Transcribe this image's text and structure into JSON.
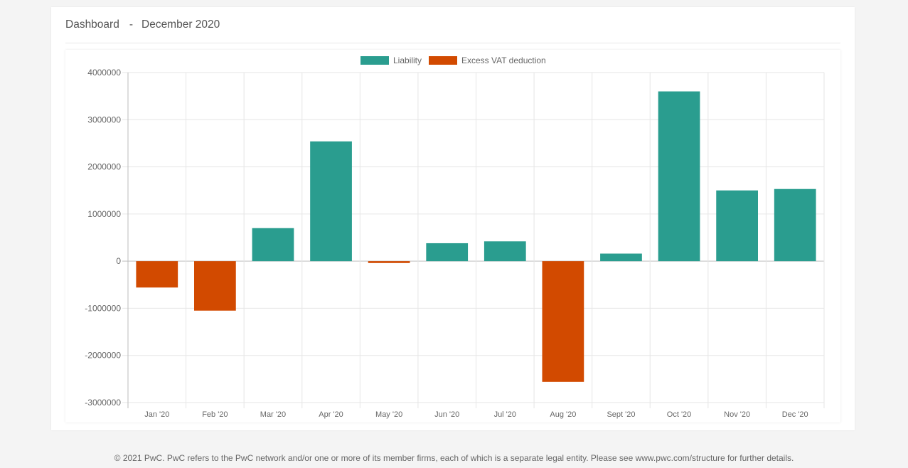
{
  "header": {
    "title": "Dashboard",
    "separator": "-",
    "period": "December 2020"
  },
  "footer": {
    "text": "© 2021 PwC. PwC refers to the PwC network and/or one or more of its member firms, each of which is a separate legal entity. Please see www.pwc.com/structure for further details."
  },
  "colors": {
    "liability": "#2a9d8f",
    "excess": "#d24a00",
    "grid": "#e6e6e6",
    "axis": "#bdbdbd",
    "tick_text": "#666666"
  },
  "chart_data": {
    "type": "bar",
    "title": "",
    "xlabel": "",
    "ylabel": "",
    "categories": [
      "Jan '20",
      "Feb '20",
      "Mar '20",
      "Apr '20",
      "May '20",
      "Jun '20",
      "Jul '20",
      "Aug '20",
      "Sept '20",
      "Oct '20",
      "Nov '20",
      "Dec '20"
    ],
    "series": [
      {
        "name": "Liability",
        "color": "#2a9d8f",
        "values": [
          0,
          0,
          700000,
          2540000,
          0,
          380000,
          420000,
          0,
          160000,
          3600000,
          1500000,
          1530000
        ]
      },
      {
        "name": "Excess VAT deduction",
        "color": "#d24a00",
        "values": [
          -560000,
          -1050000,
          0,
          0,
          -40000,
          0,
          0,
          -2560000,
          0,
          0,
          0,
          0
        ]
      }
    ],
    "ylim": [
      -3000000,
      4000000
    ],
    "yticks": [
      4000000,
      3000000,
      2000000,
      1000000,
      0,
      -1000000,
      -2000000,
      -3000000
    ],
    "ytick_labels": [
      "4000000",
      "3000000",
      "2000000",
      "1000000",
      "0",
      "-1000000",
      "-2000000",
      "-3000000"
    ],
    "stacked": true,
    "grid": true,
    "legend_position": "top"
  }
}
